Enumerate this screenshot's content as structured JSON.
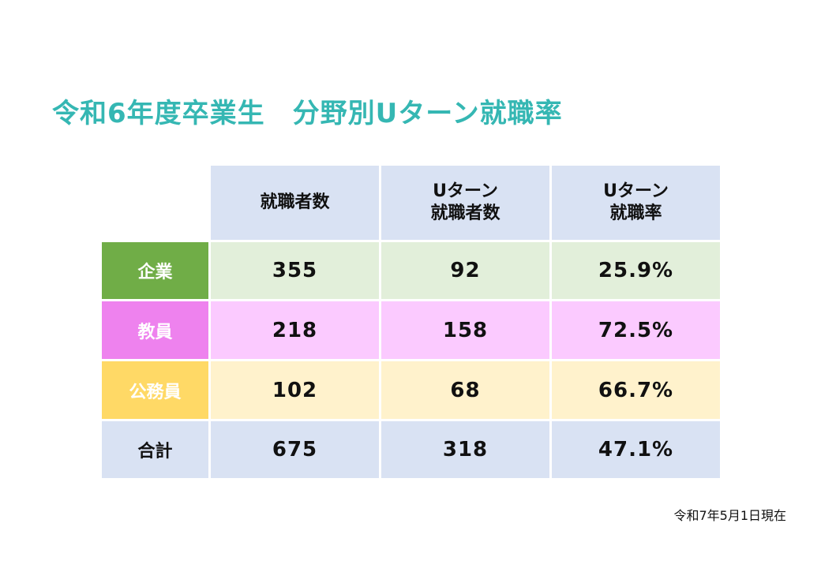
{
  "title": "令和6年度卒業生　分野別Uターン就職率",
  "table": {
    "headers": [
      "就職者数",
      "Uターン\n就職者数",
      "Uターン\n就職率"
    ],
    "header_lines": [
      [
        "就職者数"
      ],
      [
        "Uターン",
        "就職者数"
      ],
      [
        "Uターン",
        "就職率"
      ]
    ],
    "rows": [
      {
        "label": "企業",
        "employed": "355",
        "uturn_employed": "92",
        "uturn_rate": "25.9%",
        "color": "#70ad47",
        "row_color": "#e2efda"
      },
      {
        "label": "教員",
        "employed": "218",
        "uturn_employed": "158",
        "uturn_rate": "72.5%",
        "color": "#ee82ee",
        "row_color": "#fbcaff"
      },
      {
        "label": "公務員",
        "employed": "102",
        "uturn_employed": "68",
        "uturn_rate": "66.7%",
        "color": "#ffd966",
        "row_color": "#fff2cc"
      },
      {
        "label": "合計",
        "employed": "675",
        "uturn_employed": "318",
        "uturn_rate": "47.1%",
        "color": "#d9e2f3",
        "row_color": "#d9e2f3"
      }
    ]
  },
  "note": "令和7年5月1日現在",
  "colors": {
    "title": "#35b7b3",
    "header_bg": "#d9e2f3"
  }
}
